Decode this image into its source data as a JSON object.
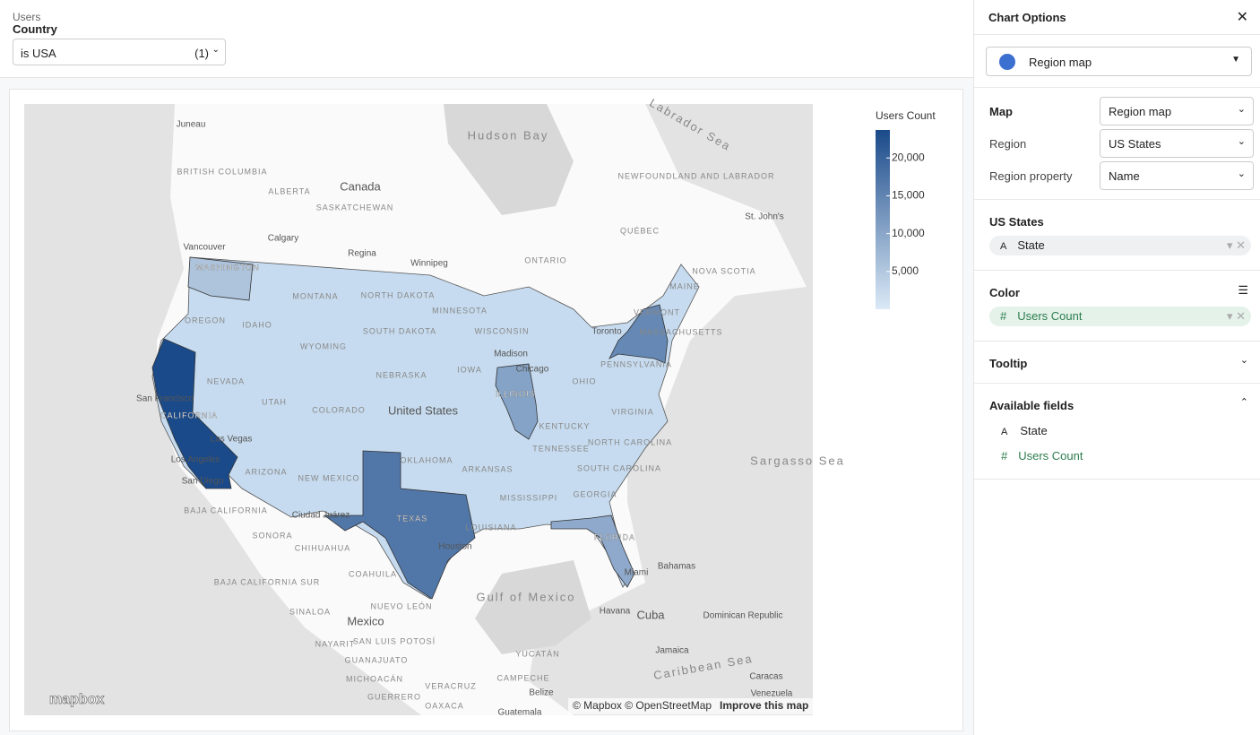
{
  "filter": {
    "source": "Users",
    "field": "Country",
    "value": "is USA",
    "count": "(1)"
  },
  "chart_data": {
    "type": "choropleth",
    "legend_title": "Users Count",
    "clim": [
      0,
      23700
    ],
    "cticks": [
      {
        "value": 5000,
        "label": "5,000"
      },
      {
        "value": 10000,
        "label": "10,000"
      },
      {
        "value": 15000,
        "label": "15,000"
      },
      {
        "value": 20000,
        "label": "20,000"
      }
    ],
    "colors": [
      "#dbe9f6",
      "#1a4a8a"
    ],
    "regions": [
      {
        "label": "CALIFORNIA",
        "value": 23700
      },
      {
        "label": "TEXAS",
        "value": 17000
      },
      {
        "label": null,
        "value": 14500
      },
      {
        "label": "ILLINOIS",
        "value": 10500
      },
      {
        "label": "FLORIDA",
        "value": 9500
      },
      {
        "label": "WASHINGTON",
        "value": 5500
      }
    ],
    "map_labels": [
      "Hudson Bay",
      "Labrador Sea",
      "Canada",
      "BRITISH COLUMBIA",
      "ALBERTA",
      "SASKATCHEWAN",
      "Calgary",
      "Regina",
      "Winnipeg",
      "ONTARIO",
      "QUÉBEC",
      "NEWFOUNDLAND AND LABRADOR",
      "St. John's",
      "NOVA SCOTIA",
      "Vancouver",
      "Juneau",
      "OREGON",
      "IDAHO",
      "MONTANA",
      "WYOMING",
      "NORTH DAKOTA",
      "SOUTH DAKOTA",
      "MINNESOTA",
      "WISCONSIN",
      "NEBRASKA",
      "IOWA",
      "NEVADA",
      "UTAH",
      "COLORADO",
      "United States",
      "San Francisco",
      "Las Vegas",
      "Los Angeles",
      "San Diego",
      "ARIZONA",
      "NEW MEXICO",
      "OKLAHOMA",
      "ARKANSAS",
      "Houston",
      "LOUISIANA",
      "MISSISSIPPI",
      "TENNESSEE",
      "KENTUCKY",
      "OHIO",
      "PENNSYLVANIA",
      "VIRGINIA",
      "NORTH CAROLINA",
      "SOUTH CAROLINA",
      "GEORGIA",
      "Miami",
      "Bahamas",
      "Madison",
      "Chicago",
      "Toronto",
      "MAINE",
      "VERMONT",
      "MASSACHUSETTS",
      "Gulf of Mexico",
      "Cuba",
      "Havana",
      "Mexico",
      "SONORA",
      "CHIHUAHUA",
      "COAHUILA",
      "BAJA CALIFORNIA",
      "BAJA CALIFORNIA SUR",
      "Ciudad Juárez",
      "SINALOA",
      "NUEVO LEÓN",
      "NAYARIT",
      "SAN LUIS POTOSÍ",
      "GUANAJUATO",
      "YUCATÁN",
      "CAMPECHE",
      "MICHOACÁN",
      "GUERRERO",
      "VERACRUZ",
      "OAXACA",
      "Belize",
      "Guatemala",
      "Jamaica",
      "Caribbean Sea",
      "Caracas",
      "Venezuela",
      "Dominican Republic",
      "Sargasso Sea"
    ],
    "logo": "mapbox",
    "attribution": "© Mapbox © OpenStreetMap",
    "improve": "Improve this map"
  },
  "panel": {
    "title": "Chart Options",
    "viz": "Region map",
    "settings": [
      {
        "label": "Map",
        "value": "Region map"
      },
      {
        "label": "Region",
        "value": "US States"
      },
      {
        "label": "Region property",
        "value": "Name"
      }
    ],
    "sections": [
      {
        "title": "US States",
        "field": "State"
      },
      {
        "title": "Color",
        "field": "Users Count"
      }
    ],
    "tooltip": "Tooltip",
    "available": "Available fields",
    "fields": [
      "State",
      "Users Count"
    ]
  }
}
